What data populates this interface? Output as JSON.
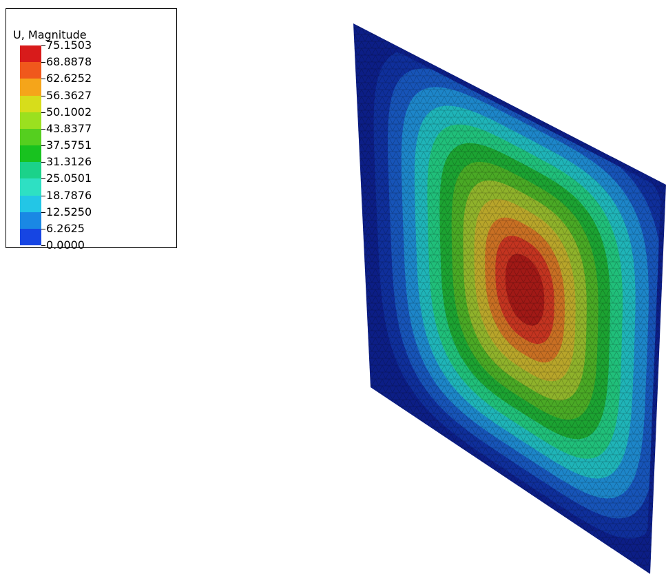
{
  "legend": {
    "title": "U, Magnitude",
    "labels": [
      "75.1503",
      "68.8878",
      "62.6252",
      "56.3627",
      "50.1002",
      "43.8377",
      "37.5751",
      "31.3126",
      "25.0501",
      "18.7876",
      "12.5250",
      "6.2625",
      "0.0000"
    ],
    "colors": [
      "#d81b1b",
      "#f0581c",
      "#f5a51a",
      "#d7dd1b",
      "#9be01f",
      "#55cf1f",
      "#18c21f",
      "#1bd28a",
      "#2ee0c3",
      "#23c6e6",
      "#1a88e4",
      "#1645e3",
      "#1313c8"
    ]
  },
  "plate": {
    "background": "#0c1e86",
    "field_colors": [
      "#0f2f9b",
      "#1754b8",
      "#1d86c9",
      "#1fb4b8",
      "#20bf7a",
      "#1ca332",
      "#4aa925",
      "#8fb22b",
      "#b8a52a",
      "#c86f23",
      "#c33420",
      "#a11916"
    ]
  }
}
